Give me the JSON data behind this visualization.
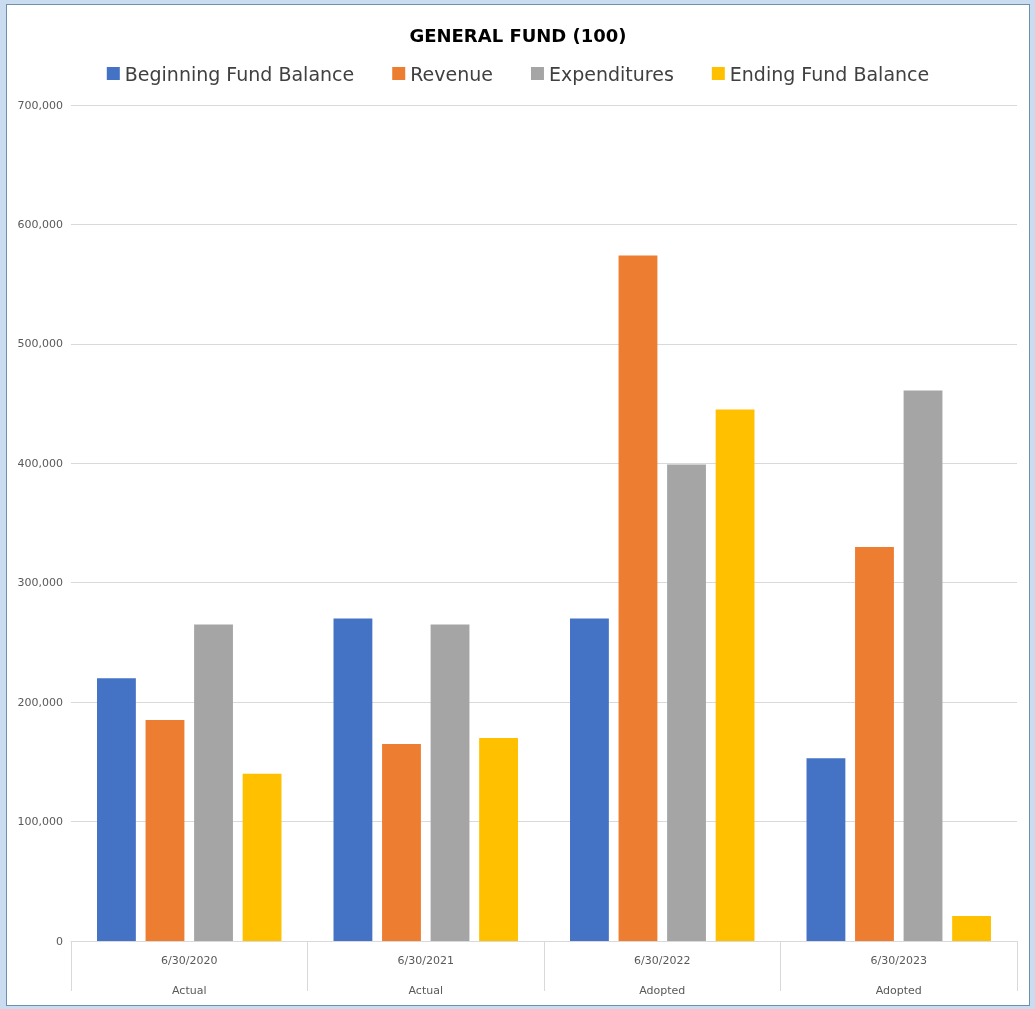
{
  "chart_data": {
    "type": "bar",
    "title": "GENERAL FUND (100)",
    "categories": [
      "6/30/2020\nActual",
      "6/30/2021\nActual",
      "6/30/2022\nAdopted",
      "6/30/2023\nAdopted"
    ],
    "series": [
      {
        "name": "Beginning Fund Balance",
        "color": "#4472c4",
        "values": [
          220000,
          270000,
          270000,
          153000
        ]
      },
      {
        "name": "Revenue",
        "color": "#ed7d31",
        "values": [
          185000,
          165000,
          574000,
          330000
        ]
      },
      {
        "name": "Expenditures",
        "color": "#a5a5a5",
        "values": [
          265000,
          265000,
          399000,
          461000
        ]
      },
      {
        "name": "Ending Fund Balance",
        "color": "#ffc000",
        "values": [
          140000,
          170000,
          445000,
          21000
        ]
      }
    ],
    "ylim": [
      0,
      700000
    ],
    "yticks": [
      {
        "value": 0,
        "label": "0"
      },
      {
        "value": 100000,
        "label": "100,000"
      },
      {
        "value": 200000,
        "label": "200,000"
      },
      {
        "value": 300000,
        "label": "300,000"
      },
      {
        "value": 400000,
        "label": "400,000"
      },
      {
        "value": 500000,
        "label": "500,000"
      },
      {
        "value": 600000,
        "label": "600,000"
      },
      {
        "value": 700000,
        "label": "700,000"
      }
    ],
    "grid": "y",
    "legend": "top"
  }
}
